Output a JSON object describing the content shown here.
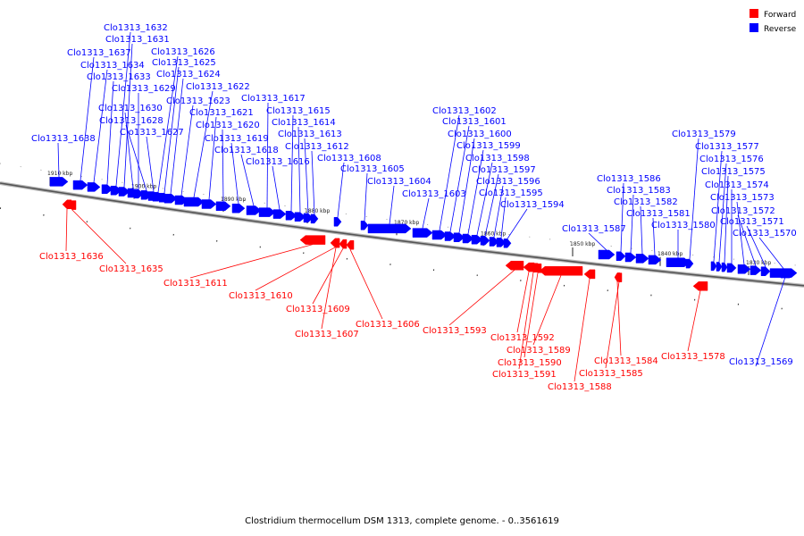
{
  "legend": [
    {
      "label": "Forward",
      "color": "#ff0000"
    },
    {
      "label": "Reverse",
      "color": "#0000ff"
    }
  ],
  "caption": "Clostridium thermocellum DSM 1313, complete genome. - 0..3561619",
  "ticks": [
    "1910 kbp",
    "1900 kbp",
    "1890 kbp",
    "1880 kbp",
    "1870 kbp",
    "1860 kbp",
    "1850 kbp",
    "1840 kbp",
    "1830 kbp"
  ],
  "genes": [
    {
      "name": "Clo1313_1638",
      "strand": "reverse"
    },
    {
      "name": "Clo1313_1637",
      "strand": "reverse"
    },
    {
      "name": "Clo1313_1636",
      "strand": "forward"
    },
    {
      "name": "Clo1313_1635",
      "strand": "forward"
    },
    {
      "name": "Clo1313_1634",
      "strand": "reverse"
    },
    {
      "name": "Clo1313_1633",
      "strand": "reverse"
    },
    {
      "name": "Clo1313_1632",
      "strand": "reverse"
    },
    {
      "name": "Clo1313_1631",
      "strand": "reverse"
    },
    {
      "name": "Clo1313_1630",
      "strand": "reverse"
    },
    {
      "name": "Clo1313_1629",
      "strand": "reverse"
    },
    {
      "name": "Clo1313_1628",
      "strand": "reverse"
    },
    {
      "name": "Clo1313_1627",
      "strand": "reverse"
    },
    {
      "name": "Clo1313_1626",
      "strand": "reverse"
    },
    {
      "name": "Clo1313_1625",
      "strand": "reverse"
    },
    {
      "name": "Clo1313_1624",
      "strand": "reverse"
    },
    {
      "name": "Clo1313_1623",
      "strand": "reverse"
    },
    {
      "name": "Clo1313_1622",
      "strand": "reverse"
    },
    {
      "name": "Clo1313_1621",
      "strand": "reverse"
    },
    {
      "name": "Clo1313_1620",
      "strand": "reverse"
    },
    {
      "name": "Clo1313_1619",
      "strand": "reverse"
    },
    {
      "name": "Clo1313_1618",
      "strand": "reverse"
    },
    {
      "name": "Clo1313_1617",
      "strand": "reverse"
    },
    {
      "name": "Clo1313_1616",
      "strand": "reverse"
    },
    {
      "name": "Clo1313_1615",
      "strand": "reverse"
    },
    {
      "name": "Clo1313_1614",
      "strand": "reverse"
    },
    {
      "name": "Clo1313_1613",
      "strand": "reverse"
    },
    {
      "name": "Clo1313_1612",
      "strand": "reverse"
    },
    {
      "name": "Clo1313_1611",
      "strand": "forward"
    },
    {
      "name": "Clo1313_1610",
      "strand": "forward"
    },
    {
      "name": "Clo1313_1609",
      "strand": "forward"
    },
    {
      "name": "Clo1313_1608",
      "strand": "reverse"
    },
    {
      "name": "Clo1313_1607",
      "strand": "forward"
    },
    {
      "name": "Clo1313_1606",
      "strand": "forward"
    },
    {
      "name": "Clo1313_1605",
      "strand": "reverse"
    },
    {
      "name": "Clo1313_1604",
      "strand": "reverse"
    },
    {
      "name": "Clo1313_1603",
      "strand": "reverse"
    },
    {
      "name": "Clo1313_1602",
      "strand": "reverse"
    },
    {
      "name": "Clo1313_1601",
      "strand": "reverse"
    },
    {
      "name": "Clo1313_1600",
      "strand": "reverse"
    },
    {
      "name": "Clo1313_1599",
      "strand": "reverse"
    },
    {
      "name": "Clo1313_1598",
      "strand": "reverse"
    },
    {
      "name": "Clo1313_1597",
      "strand": "reverse"
    },
    {
      "name": "Clo1313_1596",
      "strand": "reverse"
    },
    {
      "name": "Clo1313_1595",
      "strand": "reverse"
    },
    {
      "name": "Clo1313_1594",
      "strand": "reverse"
    },
    {
      "name": "Clo1313_1593",
      "strand": "forward"
    },
    {
      "name": "Clo1313_1592",
      "strand": "forward"
    },
    {
      "name": "Clo1313_1591",
      "strand": "forward"
    },
    {
      "name": "Clo1313_1590",
      "strand": "forward"
    },
    {
      "name": "Clo1313_1589",
      "strand": "forward"
    },
    {
      "name": "Clo1313_1588",
      "strand": "forward"
    },
    {
      "name": "Clo1313_1587",
      "strand": "reverse"
    },
    {
      "name": "Clo1313_1586",
      "strand": "reverse"
    },
    {
      "name": "Clo1313_1585",
      "strand": "forward"
    },
    {
      "name": "Clo1313_1584",
      "strand": "forward"
    },
    {
      "name": "Clo1313_1583",
      "strand": "reverse"
    },
    {
      "name": "Clo1313_1582",
      "strand": "reverse"
    },
    {
      "name": "Clo1313_1581",
      "strand": "reverse"
    },
    {
      "name": "Clo1313_1580",
      "strand": "reverse"
    },
    {
      "name": "Clo1313_1579",
      "strand": "reverse"
    },
    {
      "name": "Clo1313_1578",
      "strand": "forward"
    },
    {
      "name": "Clo1313_1577",
      "strand": "reverse"
    },
    {
      "name": "Clo1313_1576",
      "strand": "reverse"
    },
    {
      "name": "Clo1313_1575",
      "strand": "reverse"
    },
    {
      "name": "Clo1313_1574",
      "strand": "reverse"
    },
    {
      "name": "Clo1313_1573",
      "strand": "reverse"
    },
    {
      "name": "Clo1313_1572",
      "strand": "reverse"
    },
    {
      "name": "Clo1313_1571",
      "strand": "reverse"
    },
    {
      "name": "Clo1313_1570",
      "strand": "reverse"
    },
    {
      "name": "Clo1313_1569",
      "strand": "reverse"
    }
  ]
}
